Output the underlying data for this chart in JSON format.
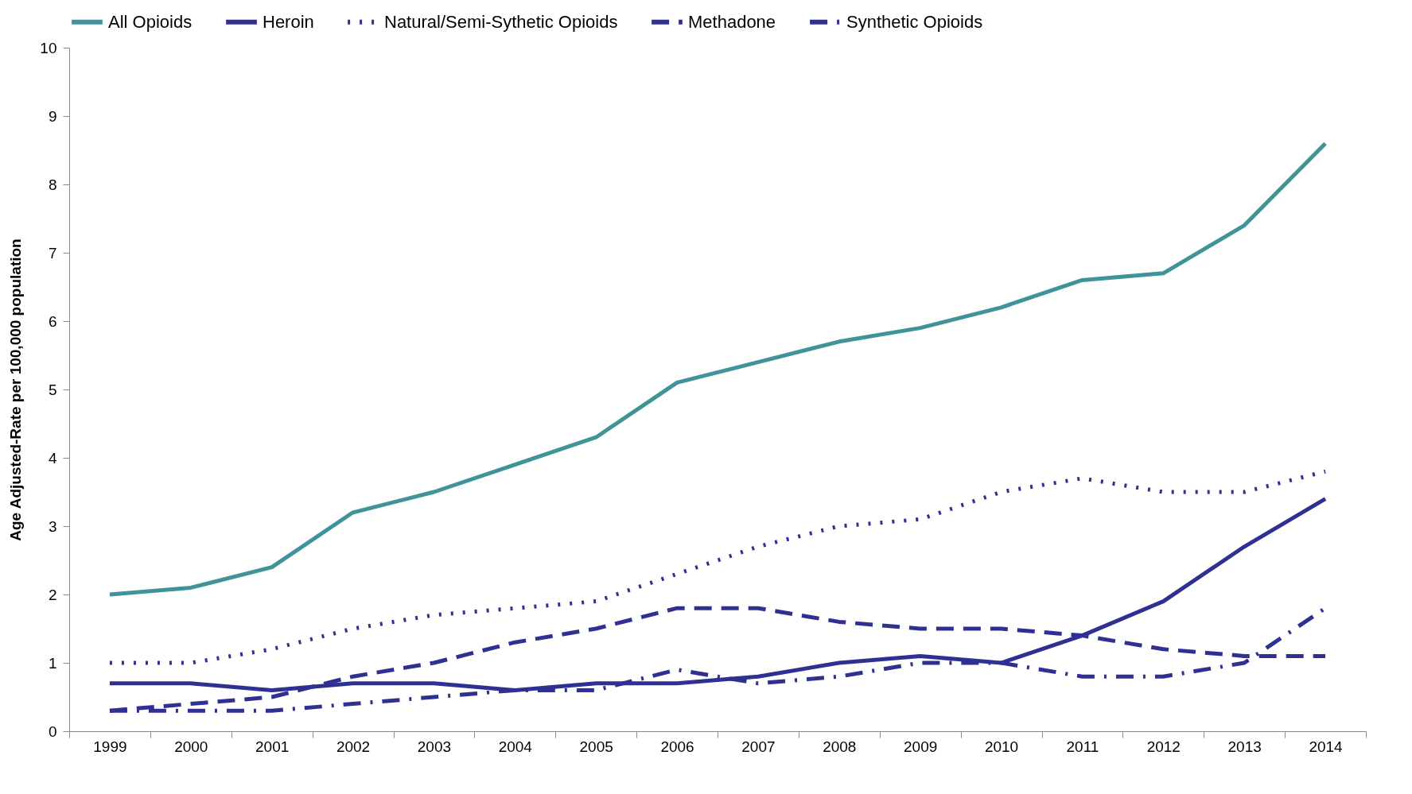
{
  "chart_data": {
    "type": "line",
    "ylabel": "Age Adjusted-Rate per 100,000 population",
    "categories": [
      "1999",
      "2000",
      "2001",
      "2002",
      "2003",
      "2004",
      "2005",
      "2006",
      "2007",
      "2008",
      "2009",
      "2010",
      "2011",
      "2012",
      "2013",
      "2014"
    ],
    "ylim": [
      0,
      10
    ],
    "yticks": [
      0,
      1,
      2,
      3,
      4,
      5,
      6,
      7,
      8,
      9,
      10
    ],
    "grid": false,
    "legend": "top",
    "marker": "none",
    "series": [
      {
        "name": "All Opioids",
        "color": "#3f9399",
        "line_style": "solid",
        "values": [
          2.0,
          2.1,
          2.4,
          3.2,
          3.5,
          3.9,
          4.3,
          5.1,
          5.4,
          5.7,
          5.9,
          6.2,
          6.6,
          6.7,
          7.4,
          8.6
        ]
      },
      {
        "name": "Heroin",
        "color": "#2e3192",
        "line_style": "solid",
        "values": [
          0.7,
          0.7,
          0.6,
          0.7,
          0.7,
          0.6,
          0.7,
          0.7,
          0.8,
          1.0,
          1.1,
          1.0,
          1.4,
          1.9,
          2.7,
          3.4
        ]
      },
      {
        "name": "Natural/Semi-Sythetic Opioids",
        "color": "#2e3192",
        "line_style": "dotted",
        "values": [
          1.0,
          1.0,
          1.2,
          1.5,
          1.7,
          1.8,
          1.9,
          2.3,
          2.7,
          3.0,
          3.1,
          3.5,
          3.7,
          3.5,
          3.5,
          3.8
        ]
      },
      {
        "name": "Methadone",
        "color": "#2e3192",
        "line_style": "dashed",
        "values": [
          0.3,
          0.4,
          0.5,
          0.8,
          1.0,
          1.3,
          1.5,
          1.8,
          1.8,
          1.6,
          1.5,
          1.5,
          1.4,
          1.2,
          1.1,
          1.1
        ]
      },
      {
        "name": "Synthetic Opioids",
        "color": "#2e3192",
        "line_style": "dashdot",
        "values": [
          0.3,
          0.3,
          0.3,
          0.4,
          0.5,
          0.6,
          0.6,
          0.9,
          0.7,
          0.8,
          1.0,
          1.0,
          0.8,
          0.8,
          1.0,
          1.8
        ]
      }
    ]
  }
}
